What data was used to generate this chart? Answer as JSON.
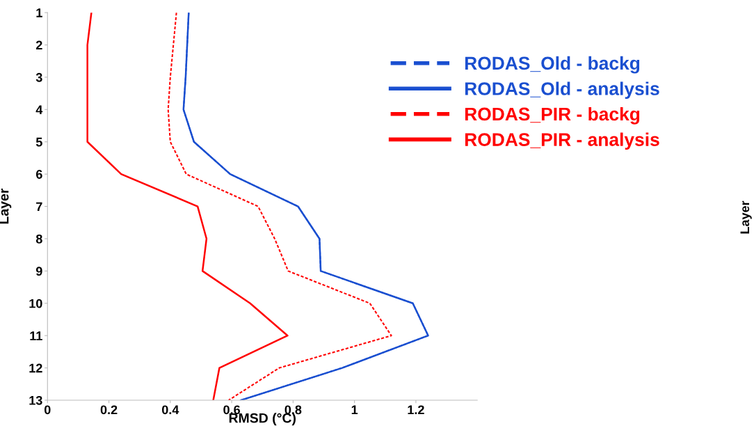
{
  "chart_data": {
    "type": "line",
    "orientation": "horizontal",
    "xlabel": "RMSD (°C)",
    "ylabel": "Layer",
    "categories": [
      "1",
      "2",
      "3",
      "4",
      "5",
      "6",
      "7",
      "8",
      "9",
      "10",
      "11",
      "12",
      "13"
    ],
    "series": [
      {
        "name": "RODAS_Old - backg",
        "color": "#1a4fd0",
        "line_style": "dashed",
        "values": [
          0.46,
          0.455,
          0.45,
          0.443,
          0.477,
          0.595,
          0.816,
          0.886,
          0.89,
          1.19,
          1.24,
          0.96,
          0.63
        ]
      },
      {
        "name": "RODAS_Old - analysis",
        "color": "#1a4fd0",
        "line_style": "solid",
        "values": [
          0.46,
          0.455,
          0.45,
          0.443,
          0.477,
          0.595,
          0.816,
          0.886,
          0.89,
          1.19,
          1.24,
          0.96,
          0.63
        ]
      },
      {
        "name": "RODAS_PIR - backg",
        "color": "#ff0000",
        "line_style": "dashed",
        "values": [
          0.42,
          0.41,
          0.4,
          0.393,
          0.4,
          0.452,
          0.686,
          0.74,
          0.784,
          1.05,
          1.12,
          0.755,
          0.59
        ]
      },
      {
        "name": "RODAS_PIR - analysis",
        "color": "#ff0000",
        "line_style": "solid",
        "values": [
          0.143,
          0.13,
          0.13,
          0.13,
          0.13,
          0.24,
          0.489,
          0.518,
          0.505,
          0.66,
          0.782,
          0.56,
          0.54
        ]
      }
    ],
    "xlim": [
      0,
      1.4
    ],
    "xticks": [
      0,
      0.2,
      0.4,
      0.6,
      0.8,
      1,
      1.2
    ],
    "legend": "right",
    "grid": false,
    "marker": "none",
    "annotations": [
      "Layer"
    ]
  }
}
